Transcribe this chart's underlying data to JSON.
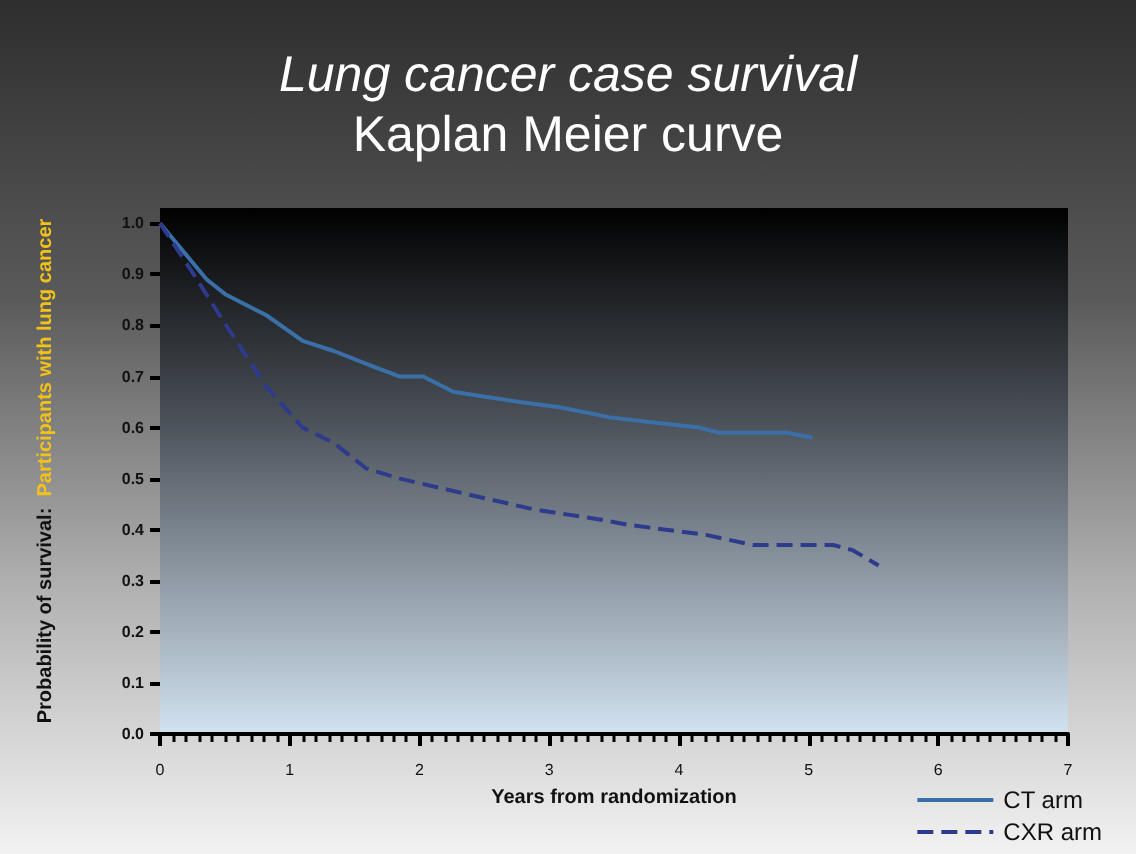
{
  "chart_data": {
    "type": "line",
    "title": "Lung cancer case survival",
    "subtitle": "Kaplan Meier curve",
    "xlabel": "Years from randomization",
    "ylabel": "Probability of survival:  Participants with lung cancer",
    "xlim": [
      0,
      7
    ],
    "xticks": [
      0,
      1,
      2,
      3,
      4,
      5,
      6,
      7
    ],
    "ylim": [
      0,
      1.03
    ],
    "yticks": [
      {
        "value": 0,
        "label": "0.0"
      },
      0.1,
      0.2,
      0.3,
      0.4,
      0.5,
      0.6,
      0.7,
      0.8,
      0.9,
      {
        "value": 1,
        "label": "1.0"
      }
    ],
    "grid": false,
    "legend": "bottom right",
    "marker": "none",
    "series": [
      {
        "name": "CT arm",
        "color": "#3a6fa8",
        "line_style": "solid",
        "x": [
          0,
          0.36,
          0.51,
          0.82,
          1.1,
          1.34,
          1.64,
          1.85,
          2.03,
          2.26,
          2.52,
          2.77,
          3.08,
          3.47,
          3.8,
          4.16,
          4.31,
          4.83,
          5.03
        ],
        "values": [
          1.0,
          0.89,
          0.86,
          0.82,
          0.77,
          0.75,
          0.72,
          0.7,
          0.7,
          0.67,
          0.66,
          0.65,
          0.64,
          0.62,
          0.61,
          0.6,
          0.59,
          0.59,
          0.58
        ]
      },
      {
        "name": "CXR arm",
        "color": "#2e3a8c",
        "line_style": "dashed",
        "x": [
          0,
          0.26,
          0.51,
          0.82,
          1.1,
          1.34,
          1.59,
          1.85,
          2.36,
          2.88,
          3.39,
          3.6,
          4.21,
          4.57,
          5.19,
          5.34,
          5.54
        ],
        "values": [
          1.0,
          0.9,
          0.8,
          0.68,
          0.6,
          0.57,
          0.52,
          0.5,
          0.47,
          0.44,
          0.42,
          0.41,
          0.39,
          0.37,
          0.37,
          0.36,
          0.33
        ]
      }
    ]
  }
}
